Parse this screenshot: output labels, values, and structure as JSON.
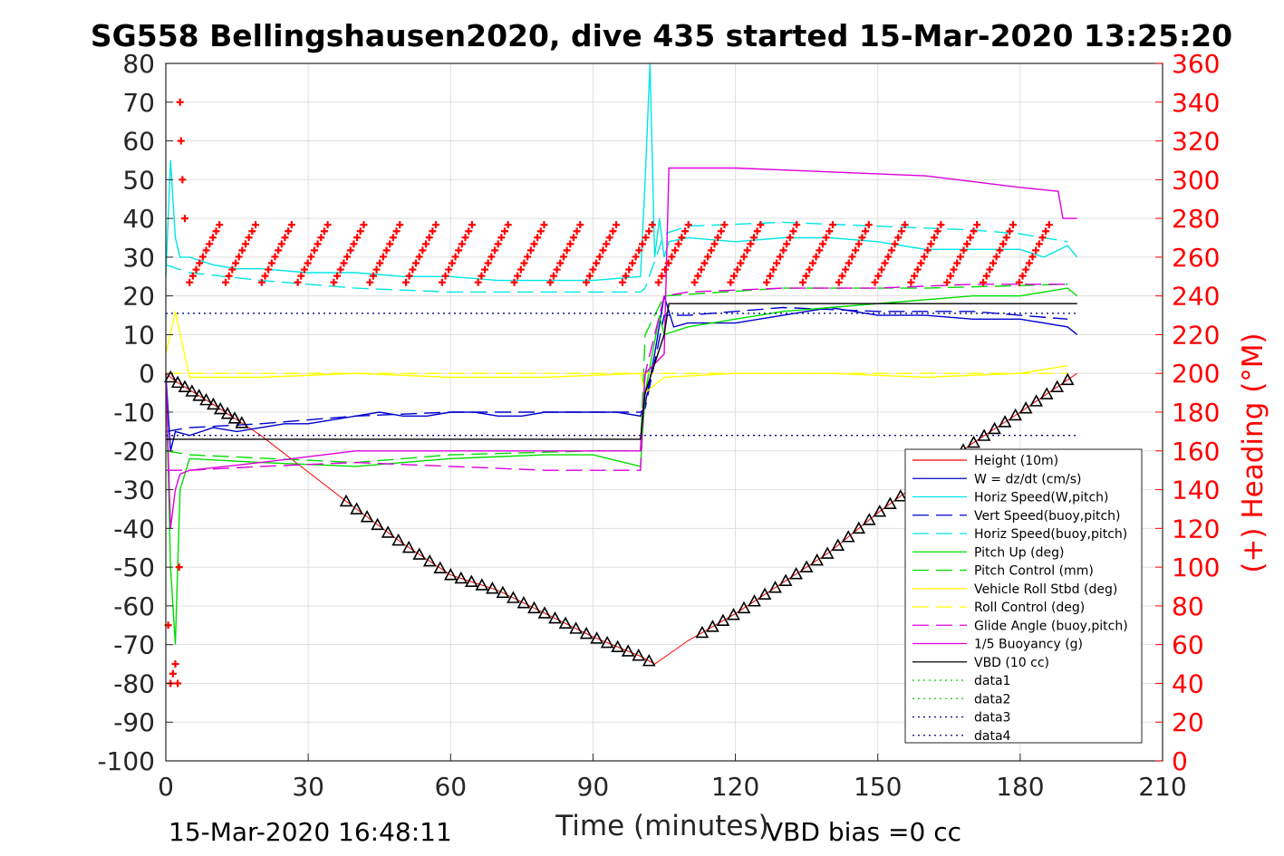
{
  "chart_data": {
    "type": "line",
    "title": "SG558 Bellingshausen2020, dive 435 started 15-Mar-2020 13:25:20",
    "xlabel": "Time (minutes)",
    "ylabel": "",
    "ylabel_right": "(+) Heading (°M)",
    "xlim": [
      0,
      210
    ],
    "ylim": [
      -100,
      80
    ],
    "ylim_right": [
      0,
      360
    ],
    "x_ticks": [
      "0",
      "30",
      "60",
      "90",
      "120",
      "150",
      "180",
      "210"
    ],
    "y_ticks": [
      "80",
      "70",
      "60",
      "50",
      "40",
      "30",
      "20",
      "10",
      "0",
      "-10",
      "-20",
      "-30",
      "-40",
      "-50",
      "-60",
      "-70",
      "-80",
      "-90",
      "-100"
    ],
    "y_right_ticks": [
      "360",
      "340",
      "320",
      "300",
      "280",
      "260",
      "240",
      "220",
      "200",
      "180",
      "160",
      "140",
      "120",
      "100",
      "80",
      "60",
      "40",
      "20",
      "0"
    ],
    "grid": true,
    "legend_position": "bottom-right",
    "footer_left": "15-Mar-2020 16:48:11",
    "footer_right": "VBD bias =0 cc",
    "series": [
      {
        "name": "Height (10m)",
        "color": "#ff0000",
        "style": "solid",
        "x": [
          0,
          2,
          10,
          20,
          38,
          50,
          60,
          70,
          80,
          90,
          100,
          103,
          110,
          120,
          130,
          140,
          150,
          160,
          170,
          180,
          186,
          192
        ],
        "y": [
          0,
          -2,
          -8,
          -16,
          -33,
          -44,
          -52,
          -56,
          -62,
          -68,
          -73,
          -75,
          -69,
          -62,
          -54,
          -46,
          -36,
          -27,
          -18,
          -10,
          -5,
          0
        ]
      },
      {
        "name": "W = dz/dt (cm/s)",
        "color": "#0000cc",
        "style": "solid",
        "x": [
          0,
          1,
          2,
          5,
          10,
          15,
          20,
          25,
          30,
          35,
          40,
          45,
          50,
          55,
          60,
          65,
          70,
          75,
          80,
          85,
          90,
          95,
          100,
          101,
          103,
          105,
          107,
          110,
          120,
          130,
          140,
          150,
          160,
          170,
          180,
          185,
          190,
          192
        ],
        "y": [
          0,
          -20,
          -15,
          -16,
          -14,
          -15,
          -14,
          -13,
          -13,
          -12,
          -11,
          -10,
          -11,
          -11,
          -10,
          -10,
          -11,
          -11,
          -10,
          -10,
          -10,
          -10,
          -11,
          -8,
          5,
          20,
          12,
          13,
          13,
          15,
          17,
          15,
          15,
          14,
          14,
          13,
          12,
          10
        ]
      },
      {
        "name": "Horiz Speed(W,pitch)",
        "color": "#00e5e5",
        "style": "solid",
        "x": [
          0,
          1,
          2,
          3,
          5,
          10,
          15,
          20,
          30,
          40,
          50,
          60,
          70,
          80,
          90,
          100,
          101,
          102,
          103,
          104,
          105,
          106,
          110,
          120,
          130,
          140,
          150,
          160,
          170,
          180,
          185,
          190,
          192
        ],
        "y": [
          25,
          55,
          35,
          30,
          30,
          28,
          27,
          27,
          26,
          26,
          25,
          25,
          24,
          24,
          24,
          25,
          50,
          80,
          30,
          40,
          30,
          34,
          35,
          34,
          35,
          35,
          34,
          32,
          32,
          32,
          30,
          33,
          30
        ]
      },
      {
        "name": "Vert Speed(buoy,pitch)",
        "color": "#0000cc",
        "style": "dashed",
        "x": [
          0,
          5,
          20,
          40,
          60,
          80,
          100,
          101,
          105,
          110,
          130,
          150,
          170,
          180,
          190
        ],
        "y": [
          -15,
          -14,
          -13,
          -11,
          -10,
          -10,
          -10,
          -9,
          15,
          15,
          17,
          16,
          16,
          15,
          14
        ]
      },
      {
        "name": "Horiz Speed(buoy,pitch)",
        "color": "#00e5e5",
        "style": "dashed",
        "x": [
          0,
          5,
          20,
          40,
          60,
          80,
          100,
          101,
          105,
          110,
          130,
          150,
          170,
          180,
          190
        ],
        "y": [
          28,
          26,
          24,
          22,
          21,
          21,
          21,
          22,
          36,
          38,
          39,
          38,
          37,
          36,
          34
        ]
      },
      {
        "name": "Pitch Up (deg)",
        "color": "#00dd00",
        "style": "solid",
        "x": [
          0,
          1,
          2,
          3,
          5,
          20,
          40,
          60,
          80,
          90,
          100,
          101,
          104,
          105,
          110,
          120,
          130,
          140,
          150,
          160,
          170,
          180,
          185,
          190,
          192
        ],
        "y": [
          0,
          -50,
          -70,
          -30,
          -22,
          -23,
          -24,
          -22,
          -21,
          -21,
          -24,
          -5,
          15,
          10,
          12,
          14,
          16,
          17,
          18,
          19,
          20,
          20,
          21,
          22,
          20
        ]
      },
      {
        "name": "Pitch Control (mm)",
        "color": "#00dd00",
        "style": "dashed",
        "x": [
          0,
          5,
          40,
          60,
          90,
          100,
          101,
          105,
          130,
          160,
          190
        ],
        "y": [
          -20,
          -21,
          -23,
          -21,
          -20,
          -20,
          10,
          20,
          22,
          22,
          23
        ]
      },
      {
        "name": "Vehicle Roll Stbd (deg)",
        "color": "#ffff00",
        "style": "solid",
        "x": [
          0,
          2,
          5,
          10,
          20,
          40,
          60,
          80,
          100,
          101,
          105,
          120,
          140,
          160,
          180,
          190
        ],
        "y": [
          5,
          16,
          -1,
          -1,
          -1,
          0,
          -1,
          -1,
          0,
          -5,
          -1,
          0,
          0,
          -1,
          0,
          2
        ]
      },
      {
        "name": "Roll Control (deg)",
        "color": "#ffff00",
        "style": "dashed",
        "x": [
          0,
          5,
          40,
          60,
          100,
          101,
          105,
          140,
          190
        ],
        "y": [
          0,
          0,
          0,
          0,
          0,
          0,
          0,
          0,
          0
        ]
      },
      {
        "name": "Glide Angle (buoy,pitch)",
        "color": "#dd00dd",
        "style": "dashed",
        "x": [
          0,
          5,
          20,
          40,
          60,
          80,
          100,
          101,
          105,
          110,
          130,
          150,
          170,
          190
        ],
        "y": [
          -25,
          -25,
          -24,
          -23,
          -24,
          -25,
          -25,
          0,
          20,
          21,
          22,
          22,
          23,
          23
        ]
      },
      {
        "name": "1/5 Buoyancy (g)",
        "color": "#dd00dd",
        "style": "solid",
        "x": [
          0,
          1,
          2,
          3,
          5,
          20,
          40,
          60,
          80,
          100,
          101,
          105,
          106,
          120,
          140,
          160,
          180,
          188,
          189,
          192
        ],
        "y": [
          0,
          -40,
          -30,
          -26,
          -25,
          -23,
          -20,
          -20,
          -20,
          -20,
          0,
          5,
          53,
          53,
          52,
          51,
          48,
          47,
          40,
          40
        ]
      },
      {
        "name": "VBD (10 cc)",
        "color": "#000000",
        "style": "solid",
        "x": [
          0,
          2,
          100,
          101,
          105,
          106,
          192
        ],
        "y": [
          -17,
          -17,
          -17,
          -5,
          10,
          18,
          18
        ]
      },
      {
        "name": "data1",
        "color": "#00cc00",
        "style": "dotted",
        "x": [],
        "y": []
      },
      {
        "name": "data2",
        "color": "#00cc00",
        "style": "dotted",
        "x": [],
        "y": []
      },
      {
        "name": "data3",
        "color": "#000088",
        "style": "dotted",
        "x": [
          0,
          192
        ],
        "y": [
          -16,
          -16
        ]
      },
      {
        "name": "data4",
        "color": "#000088",
        "style": "dotted",
        "x": [
          0,
          192
        ],
        "y": [
          15.5,
          15.5
        ]
      }
    ]
  }
}
